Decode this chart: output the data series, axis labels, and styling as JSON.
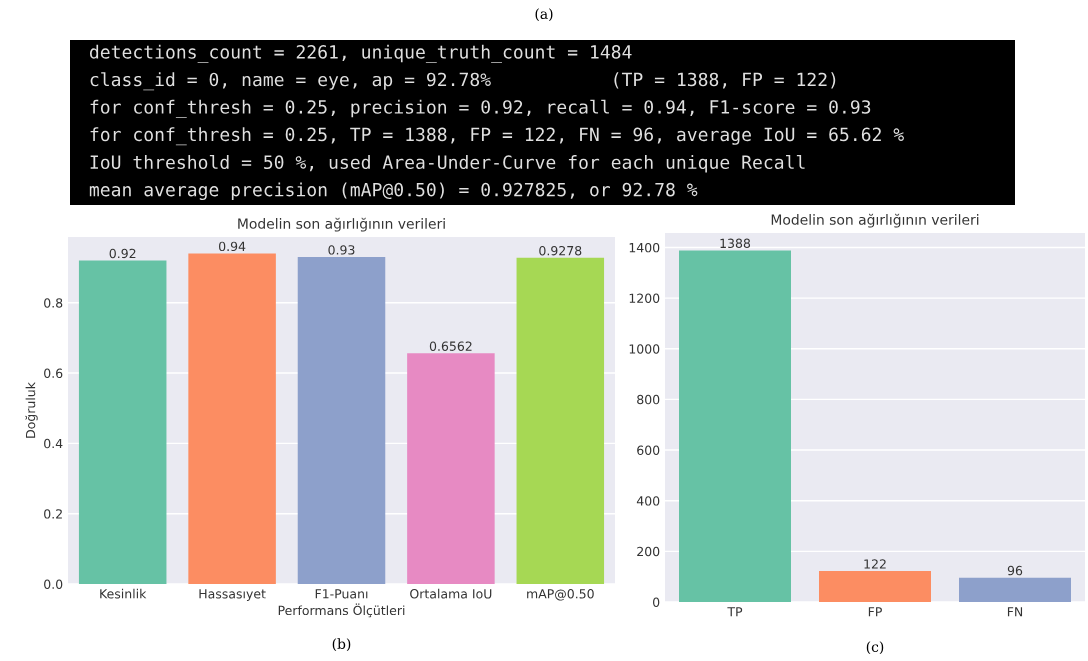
{
  "chart_data": [
    {
      "type": "other",
      "annotations": [
        "(a)",
        "detections_count = 2261, unique_truth_count = 1484",
        "class_id = 0, name = eye, ap = 92.78%           (TP = 1388, FP = 122)",
        "for conf_thresh = 0.25, precision = 0.92, recall = 0.94, F1-score = 0.93",
        "for conf_thresh = 0.25, TP = 1388, FP = 122, FN = 96, average IoU = 65.62 %",
        "IoU threshold = 50 %, used Area-Under-Curve for each unique Recall",
        "mean average precision (mAP@0.50) = 0.927825, or 92.78 %"
      ]
    },
    {
      "type": "bar",
      "title": "Modelin son ağırlığının verileri",
      "xlabel": "Performans Ölçütleri",
      "ylabel": "Doğruluk",
      "categories": [
        "Kesinlik",
        "Hassasıyet",
        "F1-Puanı",
        "Ortalama IoU",
        "mAP@0.50"
      ],
      "values": [
        0.92,
        0.94,
        0.93,
        0.6562,
        0.9278
      ],
      "colors": [
        "#66c2a5",
        "#fc8d62",
        "#8da0cb",
        "#e78ac3",
        "#a6d854"
      ],
      "ylim": [
        0,
        0.987
      ],
      "yticks": [
        {
          "value": 0,
          "label": "0.0"
        },
        0.2,
        0.4,
        0.6,
        0.8
      ],
      "grid": "y",
      "data_labels": true,
      "annotations": [
        "(b)"
      ]
    },
    {
      "type": "bar",
      "title": "Modelin son ağırlığının verileri",
      "categories": [
        "TP",
        "FP",
        "FN"
      ],
      "values": [
        1388,
        122,
        96
      ],
      "colors": [
        "#66c2a5",
        "#fc8d62",
        "#8da0cb"
      ],
      "ylim": [
        0,
        1457
      ],
      "yticks": [
        0,
        200,
        400,
        600,
        800,
        1000,
        1200,
        1400
      ],
      "grid": "y",
      "data_labels": true,
      "annotations": [
        "(c)"
      ]
    }
  ]
}
